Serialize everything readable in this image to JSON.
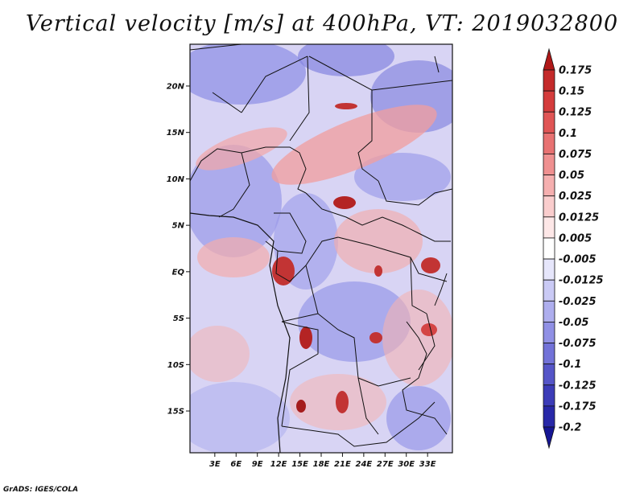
{
  "title": "Vertical velocity [m/s] at 400hPa, VT: 2019032800",
  "credit": "GrADS: IGES/COLA",
  "colors": {
    "frame": "#111111",
    "border": "#111111"
  },
  "map": {
    "lon_range": [
      -0.5,
      36.5
    ],
    "lat_range": [
      -19.5,
      24.5
    ],
    "y_ticks": [
      "20N",
      "15N",
      "10N",
      "5N",
      "EQ",
      "5S",
      "10S",
      "15S"
    ],
    "y_tick_lats": [
      20,
      15,
      10,
      5,
      0,
      -5,
      -10,
      -15
    ],
    "x_ticks": [
      "3E",
      "6E",
      "9E",
      "12E",
      "15E",
      "18E",
      "21E",
      "24E",
      "27E",
      "30E",
      "33E"
    ],
    "x_tick_lons": [
      3,
      6,
      9,
      12,
      15,
      18,
      21,
      24,
      27,
      30,
      33
    ]
  },
  "colorbar": {
    "levels": [
      "0.175",
      "0.15",
      "0.125",
      "0.1",
      "0.075",
      "0.05",
      "0.025",
      "0.0125",
      "0.005",
      "-0.005",
      "-0.0125",
      "-0.025",
      "-0.05",
      "-0.075",
      "-0.1",
      "-0.125",
      "-0.175",
      "-0.2"
    ],
    "colors": [
      "#b01818",
      "#c42a2a",
      "#d43c3c",
      "#e05555",
      "#e87272",
      "#ef9090",
      "#f5afaf",
      "#facdcd",
      "#fde7e7",
      "#ffffff",
      "#e6e6fb",
      "#cacaf5",
      "#aeaeee",
      "#9090e5",
      "#7272d8",
      "#5555c8",
      "#3c3cb8",
      "#2828a8",
      "#161694"
    ]
  }
}
